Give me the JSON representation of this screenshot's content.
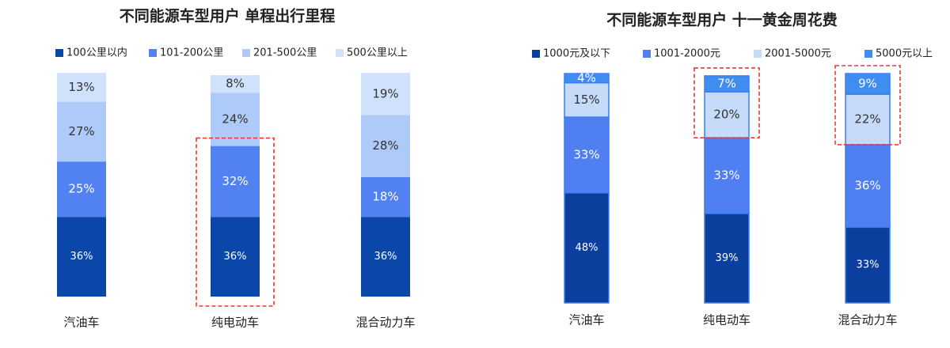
{
  "chart_data": [
    {
      "type": "stacked-bar",
      "title": "不同能源车型用户 单程出行里程",
      "categories": [
        "汽油车",
        "纯电动车",
        "混合动力车"
      ],
      "ylim": [
        0,
        100
      ],
      "series": [
        {
          "name": "100公里以内",
          "color": "#0a47a8",
          "values": [
            36,
            36,
            36
          ],
          "value_labels": [
            "36%",
            "36%",
            "36%"
          ]
        },
        {
          "name": "101-200公里",
          "color": "#5282f1",
          "values": [
            25,
            32,
            18
          ],
          "value_labels": [
            "25%",
            "32%",
            "18%"
          ]
        },
        {
          "name": "201-500公里",
          "color": "#aecaf8",
          "values": [
            27,
            24,
            28
          ],
          "value_labels": [
            "27%",
            "24%",
            "28%"
          ]
        },
        {
          "name": "500公里以上",
          "color": "#d0e1fc",
          "values": [
            13,
            8,
            19
          ],
          "value_labels": [
            "13%",
            "8%",
            "19%"
          ]
        }
      ]
    },
    {
      "type": "stacked-bar",
      "title": "不同能源车型用户 十一黄金周花费",
      "categories": [
        "汽油车",
        "纯电动车",
        "混合动力车"
      ],
      "ylim": [
        0,
        100
      ],
      "series": [
        {
          "name": "1000元及以下",
          "color": "#0b3f9e",
          "values": [
            48,
            39,
            33
          ],
          "value_labels": [
            "48%",
            "39%",
            "33%"
          ]
        },
        {
          "name": "1001-2000元",
          "color": "#4f7ff0",
          "values": [
            33,
            33,
            36
          ],
          "value_labels": [
            "33%",
            "33%",
            "36%"
          ]
        },
        {
          "name": "2001-5000元",
          "color": "#c6daf9",
          "values": [
            15,
            20,
            22
          ],
          "value_labels": [
            "15%",
            "20%",
            "22%"
          ]
        },
        {
          "name": "5000元以上",
          "color": "#3f8df0",
          "values": [
            4,
            7,
            9
          ],
          "value_labels": [
            "4%",
            "7%",
            "9%"
          ]
        }
      ]
    }
  ]
}
